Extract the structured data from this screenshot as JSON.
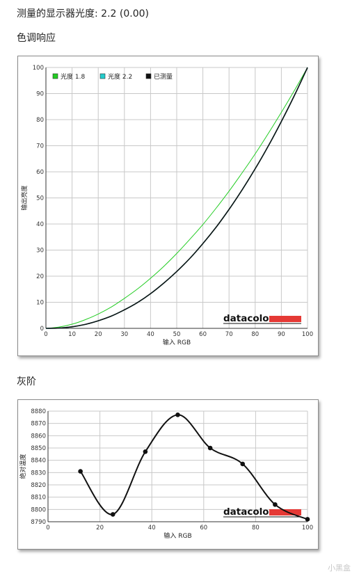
{
  "header": {
    "gamma_line": "测量的显示器光度: 2.2 (0.00)",
    "tone_title": "色调响应",
    "gray_title": "灰阶"
  },
  "brand": {
    "logo_text": "datacolor",
    "logo_bar_color": "#e53935"
  },
  "watermark": "小黑盒",
  "chart_data": [
    {
      "type": "line",
      "xlabel": "输入 RGB",
      "ylabel": "输出亮度",
      "xlim": [
        0,
        100
      ],
      "ylim": [
        0,
        100
      ],
      "xticks": [
        0,
        10,
        20,
        30,
        40,
        50,
        60,
        70,
        80,
        90,
        100
      ],
      "yticks": [
        0,
        10,
        20,
        30,
        40,
        50,
        60,
        70,
        80,
        90,
        100
      ],
      "grid": true,
      "legend_placement": "top-left",
      "x": [
        0,
        5,
        10,
        15,
        20,
        25,
        30,
        35,
        40,
        45,
        50,
        55,
        60,
        65,
        70,
        75,
        80,
        85,
        90,
        95,
        100
      ],
      "series": [
        {
          "name": "光度 1.8",
          "color": "#22cc22",
          "values": [
            0,
            0.5,
            1.6,
            3.3,
            5.5,
            8.2,
            11.5,
            15.1,
            19.2,
            23.7,
            28.7,
            34.1,
            39.8,
            46.0,
            52.6,
            59.6,
            66.9,
            74.7,
            82.8,
            91.2,
            100
          ]
        },
        {
          "name": "光度 2.2",
          "color": "#22cccc",
          "values": [
            0,
            0.1,
            0.6,
            1.5,
            2.9,
            4.7,
            7.1,
            9.9,
            13.3,
            17.3,
            21.8,
            26.8,
            32.5,
            38.7,
            45.6,
            53.1,
            61.2,
            69.9,
            79.3,
            89.3,
            100
          ]
        },
        {
          "name": "已测量",
          "color": "#111111",
          "values": [
            0,
            0.1,
            0.6,
            1.5,
            2.9,
            4.7,
            7.1,
            9.9,
            13.3,
            17.3,
            21.8,
            26.8,
            32.5,
            38.7,
            45.6,
            53.1,
            61.2,
            69.9,
            79.3,
            89.3,
            100
          ]
        }
      ]
    },
    {
      "type": "line",
      "xlabel": "输入 RGB",
      "ylabel": "绝对温度",
      "xlim": [
        0,
        100
      ],
      "ylim": [
        8790,
        8880
      ],
      "xticks": [
        0,
        20,
        40,
        60,
        80,
        100
      ],
      "yticks": [
        8790,
        8800,
        8810,
        8820,
        8830,
        8840,
        8850,
        8860,
        8870,
        8880
      ],
      "grid": true,
      "series": [
        {
          "color": "#111111",
          "x": [
            12.5,
            25,
            37.5,
            50,
            62.5,
            75,
            87.5,
            100
          ],
          "values": [
            8831,
            8796,
            8847,
            8877,
            8850,
            8837,
            8804,
            8792
          ]
        }
      ]
    }
  ]
}
